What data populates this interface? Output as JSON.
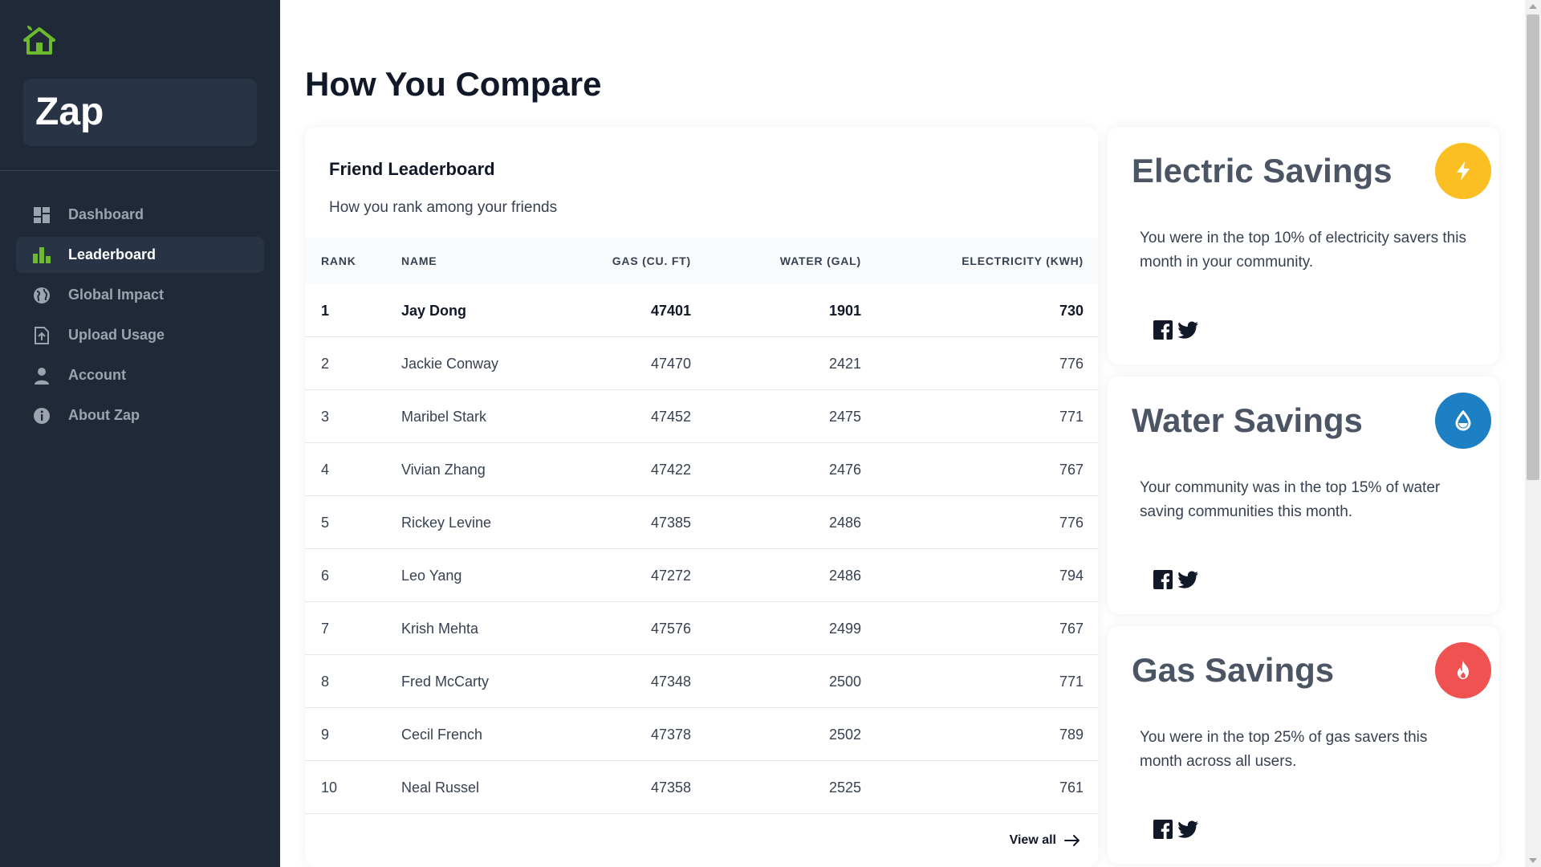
{
  "sidebar": {
    "brand": "Zap",
    "logo_icon": "house-leaf-icon",
    "items": [
      {
        "label": "Dashboard",
        "icon": "grid-icon",
        "active": false
      },
      {
        "label": "Leaderboard",
        "icon": "bar-chart-icon",
        "active": true
      },
      {
        "label": "Global Impact",
        "icon": "globe-icon",
        "active": false
      },
      {
        "label": "Upload Usage",
        "icon": "file-upload-icon",
        "active": false
      },
      {
        "label": "Account",
        "icon": "user-icon",
        "active": false
      },
      {
        "label": "About Zap",
        "icon": "info-icon",
        "active": false
      }
    ]
  },
  "page": {
    "title": "How You Compare"
  },
  "leaderboard": {
    "title": "Friend Leaderboard",
    "subtitle": "How you rank among your friends",
    "columns": [
      "RANK",
      "NAME",
      "GAS (CU. FT)",
      "WATER (GAL)",
      "ELECTRICITY (KWH)"
    ],
    "rows": [
      [
        "1",
        "Jay Dong",
        "47401",
        "1901",
        "730"
      ],
      [
        "2",
        "Jackie Conway",
        "47470",
        "2421",
        "776"
      ],
      [
        "3",
        "Maribel Stark",
        "47452",
        "2475",
        "771"
      ],
      [
        "4",
        "Vivian Zhang",
        "47422",
        "2476",
        "767"
      ],
      [
        "5",
        "Rickey Levine",
        "47385",
        "2486",
        "776"
      ],
      [
        "6",
        "Leo Yang",
        "47272",
        "2486",
        "794"
      ],
      [
        "7",
        "Krish Mehta",
        "47576",
        "2499",
        "767"
      ],
      [
        "8",
        "Fred McCarty",
        "47348",
        "2500",
        "771"
      ],
      [
        "9",
        "Cecil French",
        "47378",
        "2502",
        "789"
      ],
      [
        "10",
        "Neal Russel",
        "47358",
        "2525",
        "761"
      ]
    ],
    "view_all": "View all"
  },
  "savings": [
    {
      "title": "Electric Savings",
      "text": "You were in the top 10% of electricity savers this month in your community.",
      "icon": "lightning-icon",
      "color": "#fbbf24"
    },
    {
      "title": "Water Savings",
      "text": "Your community was in the top 15% of water saving communities this month.",
      "icon": "water-drop-icon",
      "color": "#1d7fc4"
    },
    {
      "title": "Gas Savings",
      "text": "You were in the top 25% of gas savers this month across all users.",
      "icon": "flame-icon",
      "color": "#f05252"
    }
  ],
  "colors": {
    "sidebar_bg": "#1f2937",
    "accent_green": "#6dbb2c"
  }
}
